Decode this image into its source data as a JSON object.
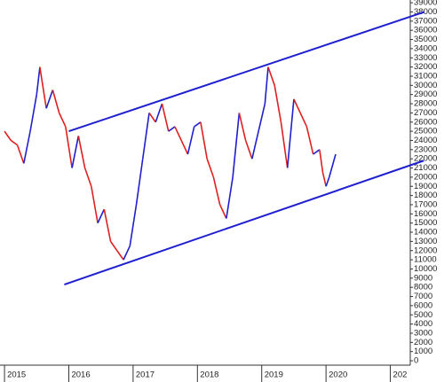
{
  "chart_data": {
    "type": "line",
    "x": [
      2015.0,
      2015.1,
      2015.2,
      2015.3,
      2015.4,
      2015.5,
      2015.55,
      2015.65,
      2015.75,
      2015.85,
      2015.95,
      2016.05,
      2016.15,
      2016.25,
      2016.35,
      2016.45,
      2016.55,
      2016.65,
      2016.75,
      2016.85,
      2016.95,
      2017.05,
      2017.15,
      2017.25,
      2017.35,
      2017.45,
      2017.55,
      2017.65,
      2017.75,
      2017.85,
      2017.95,
      2018.05,
      2018.15,
      2018.25,
      2018.35,
      2018.45,
      2018.55,
      2018.65,
      2018.75,
      2018.85,
      2018.95,
      2019.05,
      2019.1,
      2019.2,
      2019.3,
      2019.4,
      2019.5,
      2019.6,
      2019.7,
      2019.8,
      2019.9,
      2019.95,
      2020.0,
      2020.05,
      2020.15
    ],
    "series": [
      {
        "up_color": "#1f1fd0",
        "down_color": "#e02020",
        "values": [
          25000,
          24000,
          23500,
          21500,
          25000,
          29000,
          32000,
          27500,
          29500,
          27000,
          25500,
          21000,
          24500,
          21000,
          19000,
          15000,
          16500,
          13000,
          12000,
          11000,
          12500,
          17000,
          22000,
          27000,
          26000,
          28000,
          25000,
          25500,
          24000,
          22500,
          25500,
          26000,
          22000,
          20000,
          17000,
          15500,
          20000,
          27000,
          24000,
          22000,
          25000,
          28000,
          32000,
          30000,
          26000,
          21000,
          28500,
          27000,
          25500,
          22500,
          23000,
          20500,
          19000,
          20000,
          22500
        ]
      }
    ],
    "trendlines": [
      {
        "color": "#1f1fd0",
        "x": [
          2016.0,
          2021.53
        ],
        "y": [
          25000,
          38000
        ]
      },
      {
        "color": "#1f1fd0",
        "x": [
          2015.93,
          2021.52
        ],
        "y": [
          8300,
          21800
        ]
      }
    ],
    "xlim": [
      2014.93,
      2021.31
    ],
    "xticks": [
      2015,
      2016,
      2017,
      2018,
      2019,
      2020,
      {
        "value": 2021,
        "label": "202"
      }
    ],
    "ylim": [
      -480,
      39300
    ],
    "yticks": [
      0,
      1000,
      2000,
      3000,
      4000,
      5000,
      6000,
      7000,
      8000,
      9000,
      10000,
      11000,
      12000,
      13000,
      14000,
      15000,
      16000,
      17000,
      18000,
      19000,
      20000,
      21000,
      22000,
      23000,
      24000,
      25000,
      26000,
      27000,
      28000,
      29000,
      30000,
      31000,
      32000,
      33000,
      34000,
      35000,
      36000,
      37000,
      38000,
      39000
    ]
  }
}
